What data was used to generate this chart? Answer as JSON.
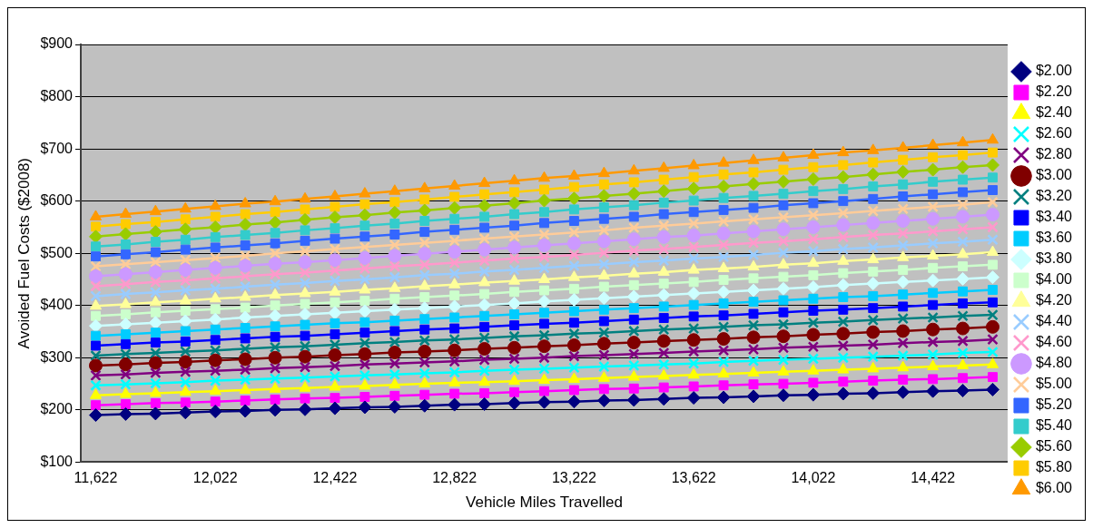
{
  "chart_data": {
    "type": "line",
    "xlabel": "Vehicle Miles Travelled",
    "ylabel": "Avoided Fuel Costs ($2008)",
    "categories": [
      "11,622",
      null,
      null,
      null,
      "12,022",
      null,
      null,
      null,
      "12,422",
      null,
      null,
      null,
      "12,822",
      null,
      null,
      null,
      "13,222",
      null,
      null,
      null,
      "13,622",
      null,
      null,
      null,
      "14,022",
      null,
      null,
      null,
      "14,422",
      null,
      null
    ],
    "ylim": [
      100,
      900
    ],
    "yticks": [
      {
        "value": 100,
        "label": "$100"
      },
      {
        "value": 200,
        "label": "$200"
      },
      {
        "value": 300,
        "label": "$300"
      },
      {
        "value": 400,
        "label": "$400"
      },
      {
        "value": 500,
        "label": "$500"
      },
      {
        "value": 600,
        "label": "$600"
      },
      {
        "value": 700,
        "label": "$700"
      },
      {
        "value": 800,
        "label": "$800"
      },
      {
        "value": 900,
        "label": "$900"
      }
    ],
    "grid": "y",
    "legend": "right",
    "line_style": "solid",
    "series": [
      {
        "name": "$2.00",
        "color": "#000080",
        "marker": "diamond",
        "values": [
          190,
          192,
          193,
          195,
          197,
          198,
          200,
          201,
          203,
          205,
          206,
          208,
          210,
          211,
          213,
          215,
          216,
          218,
          219,
          221,
          223,
          224,
          226,
          228,
          229,
          231,
          232,
          234,
          236,
          237,
          239
        ]
      },
      {
        "name": "$2.20",
        "color": "#ff00ff",
        "marker": "square",
        "values": [
          209,
          211,
          213,
          214,
          216,
          218,
          220,
          222,
          223,
          225,
          227,
          229,
          231,
          232,
          234,
          236,
          238,
          240,
          241,
          243,
          245,
          247,
          249,
          250,
          252,
          254,
          256,
          258,
          259,
          261,
          263
        ]
      },
      {
        "name": "$2.40",
        "color": "#ffff00",
        "marker": "triangle",
        "values": [
          228,
          230,
          232,
          234,
          236,
          238,
          240,
          242,
          244,
          246,
          248,
          250,
          252,
          253,
          255,
          257,
          259,
          261,
          263,
          265,
          267,
          269,
          271,
          273,
          275,
          277,
          279,
          281,
          283,
          285,
          287
        ]
      },
      {
        "name": "$2.60",
        "color": "#00ffff",
        "marker": "cross",
        "values": [
          247,
          249,
          251,
          253,
          256,
          258,
          260,
          262,
          264,
          266,
          268,
          270,
          272,
          275,
          277,
          279,
          281,
          283,
          285,
          287,
          289,
          292,
          294,
          296,
          298,
          300,
          302,
          304,
          306,
          309,
          311
        ]
      },
      {
        "name": "$2.80",
        "color": "#800080",
        "marker": "cross",
        "values": [
          266,
          268,
          271,
          273,
          275,
          277,
          280,
          282,
          284,
          287,
          289,
          291,
          293,
          296,
          298,
          300,
          303,
          305,
          307,
          309,
          312,
          314,
          316,
          319,
          321,
          323,
          325,
          328,
          330,
          332,
          335
        ]
      },
      {
        "name": "$3.00",
        "color": "#800000",
        "marker": "circle",
        "values": [
          285,
          287,
          290,
          292,
          295,
          297,
          300,
          302,
          305,
          307,
          310,
          312,
          314,
          317,
          319,
          322,
          324,
          327,
          329,
          332,
          334,
          336,
          339,
          341,
          344,
          346,
          349,
          351,
          354,
          356,
          359
        ]
      },
      {
        "name": "$3.20",
        "color": "#008080",
        "marker": "cross",
        "values": [
          304,
          307,
          309,
          312,
          314,
          317,
          320,
          322,
          325,
          328,
          330,
          333,
          335,
          338,
          341,
          343,
          346,
          348,
          351,
          354,
          356,
          359,
          362,
          364,
          367,
          369,
          372,
          375,
          377,
          380,
          382
        ]
      },
      {
        "name": "$3.40",
        "color": "#0000ff",
        "marker": "square",
        "values": [
          323,
          326,
          329,
          331,
          334,
          337,
          340,
          342,
          345,
          348,
          351,
          354,
          356,
          359,
          362,
          365,
          367,
          370,
          373,
          376,
          379,
          381,
          384,
          387,
          390,
          392,
          395,
          398,
          401,
          404,
          406
        ]
      },
      {
        "name": "$3.60",
        "color": "#00ccff",
        "marker": "square",
        "values": [
          342,
          345,
          348,
          351,
          354,
          357,
          360,
          363,
          366,
          368,
          371,
          374,
          377,
          380,
          383,
          386,
          389,
          392,
          395,
          398,
          401,
          404,
          407,
          410,
          413,
          416,
          418,
          421,
          424,
          427,
          430
        ]
      },
      {
        "name": "$3.80",
        "color": "#ccffff",
        "marker": "diamond",
        "values": [
          361,
          364,
          367,
          370,
          373,
          377,
          380,
          383,
          386,
          389,
          392,
          395,
          398,
          401,
          404,
          408,
          411,
          414,
          417,
          420,
          423,
          426,
          429,
          432,
          435,
          439,
          442,
          445,
          448,
          451,
          454
        ]
      },
      {
        "name": "$4.00",
        "color": "#ccffcc",
        "marker": "square",
        "values": [
          380,
          383,
          387,
          390,
          393,
          396,
          400,
          403,
          406,
          409,
          413,
          416,
          419,
          422,
          426,
          429,
          432,
          436,
          439,
          442,
          445,
          449,
          452,
          455,
          458,
          462,
          465,
          468,
          472,
          475,
          478
        ]
      },
      {
        "name": "$4.20",
        "color": "#ffff99",
        "marker": "triangle",
        "values": [
          399,
          402,
          406,
          409,
          413,
          416,
          420,
          423,
          426,
          430,
          433,
          437,
          440,
          444,
          447,
          450,
          454,
          457,
          461,
          464,
          468,
          471,
          474,
          478,
          481,
          485,
          488,
          492,
          495,
          498,
          502
        ]
      },
      {
        "name": "$4.40",
        "color": "#99ccff",
        "marker": "cross",
        "values": [
          418,
          422,
          425,
          429,
          432,
          436,
          440,
          443,
          447,
          450,
          454,
          458,
          461,
          465,
          468,
          472,
          476,
          479,
          483,
          486,
          490,
          493,
          497,
          501,
          504,
          508,
          511,
          515,
          519,
          522,
          526
        ]
      },
      {
        "name": "$4.60",
        "color": "#ff99cc",
        "marker": "cross",
        "values": [
          437,
          441,
          445,
          448,
          452,
          456,
          460,
          463,
          467,
          471,
          475,
          478,
          482,
          486,
          490,
          493,
          497,
          501,
          505,
          508,
          512,
          516,
          520,
          523,
          527,
          531,
          535,
          538,
          542,
          546,
          550
        ]
      },
      {
        "name": "$4.80",
        "color": "#cc99ff",
        "marker": "circle",
        "values": [
          456,
          460,
          464,
          468,
          472,
          476,
          480,
          483,
          487,
          491,
          495,
          499,
          503,
          507,
          511,
          515,
          519,
          523,
          527,
          531,
          534,
          538,
          542,
          546,
          550,
          554,
          558,
          562,
          566,
          570,
          574
        ]
      },
      {
        "name": "$5.00",
        "color": "#ffcc99",
        "marker": "cross",
        "values": [
          475,
          479,
          483,
          487,
          491,
          495,
          500,
          504,
          508,
          512,
          516,
          520,
          524,
          528,
          532,
          536,
          540,
          544,
          549,
          553,
          557,
          561,
          565,
          569,
          573,
          577,
          581,
          585,
          589,
          593,
          598
        ]
      },
      {
        "name": "$5.20",
        "color": "#3366ff",
        "marker": "square",
        "values": [
          494,
          498,
          502,
          507,
          511,
          515,
          519,
          524,
          528,
          532,
          536,
          541,
          545,
          549,
          553,
          558,
          562,
          566,
          570,
          575,
          579,
          583,
          587,
          592,
          596,
          600,
          604,
          609,
          613,
          617,
          621
        ]
      },
      {
        "name": "$5.40",
        "color": "#33cccc",
        "marker": "square",
        "values": [
          513,
          517,
          522,
          526,
          531,
          535,
          539,
          544,
          548,
          553,
          557,
          562,
          566,
          570,
          575,
          579,
          584,
          588,
          592,
          597,
          601,
          606,
          610,
          614,
          619,
          623,
          628,
          632,
          637,
          641,
          645
        ]
      },
      {
        "name": "$5.60",
        "color": "#99cc00",
        "marker": "diamond",
        "values": [
          532,
          537,
          541,
          546,
          550,
          555,
          559,
          564,
          569,
          573,
          578,
          582,
          587,
          591,
          596,
          601,
          605,
          610,
          614,
          619,
          624,
          628,
          633,
          637,
          642,
          646,
          651,
          656,
          660,
          665,
          669
        ]
      },
      {
        "name": "$5.80",
        "color": "#ffcc00",
        "marker": "square",
        "values": [
          551,
          556,
          560,
          565,
          570,
          575,
          579,
          584,
          589,
          594,
          598,
          603,
          608,
          613,
          617,
          622,
          627,
          632,
          636,
          641,
          646,
          651,
          655,
          660,
          665,
          669,
          674,
          679,
          684,
          688,
          693
        ]
      },
      {
        "name": "$6.00",
        "color": "#ff9900",
        "marker": "triangle",
        "values": [
          570,
          575,
          580,
          585,
          590,
          595,
          599,
          604,
          609,
          614,
          619,
          624,
          629,
          634,
          639,
          644,
          648,
          653,
          658,
          663,
          668,
          673,
          678,
          683,
          688,
          693,
          697,
          702,
          707,
          712,
          717
        ]
      }
    ]
  }
}
